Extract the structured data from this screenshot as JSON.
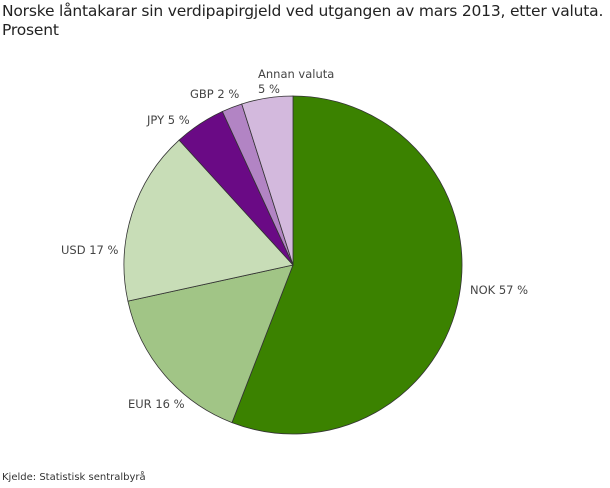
{
  "title": "Norske låntakarar sin verdipapirgjeld ved utgangen av mars 2013, etter valuta.\nProsent",
  "source": "Kjelde: Statistisk sentralbyrå",
  "chart_data": {
    "type": "pie",
    "title": "Norske låntakarar sin verdipapirgjeld ved utgangen av mars 2013, etter valuta. Prosent",
    "unit": "%",
    "start_angle_deg": 0,
    "direction": "clockwise",
    "categories": [
      "NOK",
      "EUR",
      "USD",
      "JPY",
      "GBP",
      "Annan valuta"
    ],
    "values": [
      57,
      16,
      17,
      5,
      2,
      5
    ],
    "colors": [
      "#3b8200",
      "#a1c586",
      "#c8ddb7",
      "#6a0a85",
      "#b284c4",
      "#d3b9dd"
    ],
    "labels": [
      "NOK 57 %",
      "EUR 16 %",
      "USD 17 %",
      "JPY 5 %",
      "GBP 2 %",
      "Annan valuta\n5 %"
    ]
  },
  "labels": {
    "nok": "NOK 57 %",
    "eur": "EUR 16 %",
    "usd": "USD 17 %",
    "jpy": "JPY 5 %",
    "gbp": "GBP 2 %",
    "annan_line1": "Annan valuta",
    "annan_line2": "5 %"
  }
}
